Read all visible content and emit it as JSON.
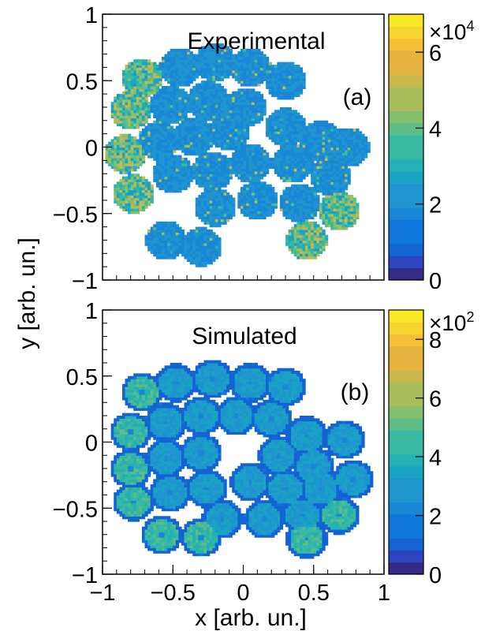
{
  "figure": {
    "ylabel": "y [arb. un.]",
    "xlabel": "x [arb. un.]"
  },
  "chart_data": [
    {
      "type": "heatmap",
      "title": "Experimental",
      "panel_label": "(a)",
      "x_range": [
        -1,
        1
      ],
      "y_range": [
        -1,
        1
      ],
      "y_ticks": [
        "1",
        "0.5",
        "0",
        "−0.5",
        "−1"
      ],
      "y_tick_values": [
        1,
        0.5,
        0,
        -0.5,
        -1
      ],
      "colorbar": {
        "min": 0,
        "max": 70000,
        "multiplier": "×10",
        "exponent": "4",
        "tick_labels": [
          "6",
          "4",
          "2",
          "0"
        ],
        "tick_values": [
          6,
          4,
          2,
          0
        ]
      },
      "description_cells": {
        "hex_centers": [
          [
            -0.72,
            0.52
          ],
          [
            -0.45,
            0.6
          ],
          [
            -0.2,
            0.64
          ],
          [
            0.05,
            0.6
          ],
          [
            0.3,
            0.5
          ],
          [
            -0.8,
            0.28
          ],
          [
            -0.52,
            0.32
          ],
          [
            -0.25,
            0.35
          ],
          [
            0.02,
            0.3
          ],
          [
            -0.84,
            -0.05
          ],
          [
            -0.6,
            0.05
          ],
          [
            -0.35,
            0.08
          ],
          [
            -0.1,
            0.12
          ],
          [
            0.3,
            0.15
          ],
          [
            0.55,
            0.05
          ],
          [
            -0.78,
            -0.35
          ],
          [
            -0.5,
            -0.2
          ],
          [
            -0.22,
            -0.18
          ],
          [
            0.05,
            -0.12
          ],
          [
            0.35,
            -0.12
          ],
          [
            0.62,
            -0.22
          ],
          [
            0.75,
            0.0
          ],
          [
            -0.2,
            -0.45
          ],
          [
            0.1,
            -0.4
          ],
          [
            0.4,
            -0.42
          ],
          [
            0.68,
            -0.48
          ],
          [
            -0.55,
            -0.7
          ],
          [
            -0.3,
            -0.75
          ],
          [
            0.45,
            -0.7
          ]
        ],
        "bright_hex": [
          0,
          5,
          9,
          15,
          25,
          28
        ]
      }
    },
    {
      "type": "heatmap",
      "title": "Simulated",
      "panel_label": "(b)",
      "x_range": [
        -1,
        1
      ],
      "y_range": [
        -1,
        1
      ],
      "x_ticks": [
        "−1",
        "−0.5",
        "0",
        "0.5",
        "1"
      ],
      "x_tick_values": [
        -1,
        -0.5,
        0,
        0.5,
        1
      ],
      "y_ticks": [
        "1",
        "0.5",
        "0",
        "−0.5",
        "−1"
      ],
      "y_tick_values": [
        1,
        0.5,
        0,
        -0.5,
        -1
      ],
      "colorbar": {
        "min": 0,
        "max": 900,
        "multiplier": "×10",
        "exponent": "2",
        "tick_labels": [
          "8",
          "6",
          "4",
          "2",
          "0"
        ],
        "tick_values": [
          8,
          6,
          4,
          2,
          0
        ]
      },
      "description_cells": {
        "hex_centers": [
          [
            -0.72,
            0.38
          ],
          [
            -0.48,
            0.45
          ],
          [
            -0.22,
            0.48
          ],
          [
            0.05,
            0.45
          ],
          [
            0.3,
            0.42
          ],
          [
            -0.8,
            0.08
          ],
          [
            -0.55,
            0.15
          ],
          [
            -0.3,
            0.2
          ],
          [
            -0.05,
            0.2
          ],
          [
            0.2,
            0.18
          ],
          [
            0.45,
            0.05
          ],
          [
            -0.8,
            -0.2
          ],
          [
            -0.55,
            -0.12
          ],
          [
            -0.3,
            -0.08
          ],
          [
            0.25,
            -0.1
          ],
          [
            0.5,
            -0.18
          ],
          [
            0.72,
            0.02
          ],
          [
            -0.78,
            -0.45
          ],
          [
            -0.52,
            -0.38
          ],
          [
            -0.26,
            -0.35
          ],
          [
            0.05,
            -0.3
          ],
          [
            0.3,
            -0.35
          ],
          [
            0.55,
            -0.35
          ],
          [
            0.78,
            -0.28
          ],
          [
            -0.15,
            -0.58
          ],
          [
            0.15,
            -0.58
          ],
          [
            0.42,
            -0.55
          ],
          [
            0.68,
            -0.55
          ],
          [
            -0.58,
            -0.7
          ],
          [
            -0.3,
            -0.72
          ],
          [
            0.45,
            -0.73
          ]
        ],
        "bright_hex": [
          0,
          5,
          11,
          17,
          28,
          29,
          30,
          27
        ]
      }
    }
  ]
}
